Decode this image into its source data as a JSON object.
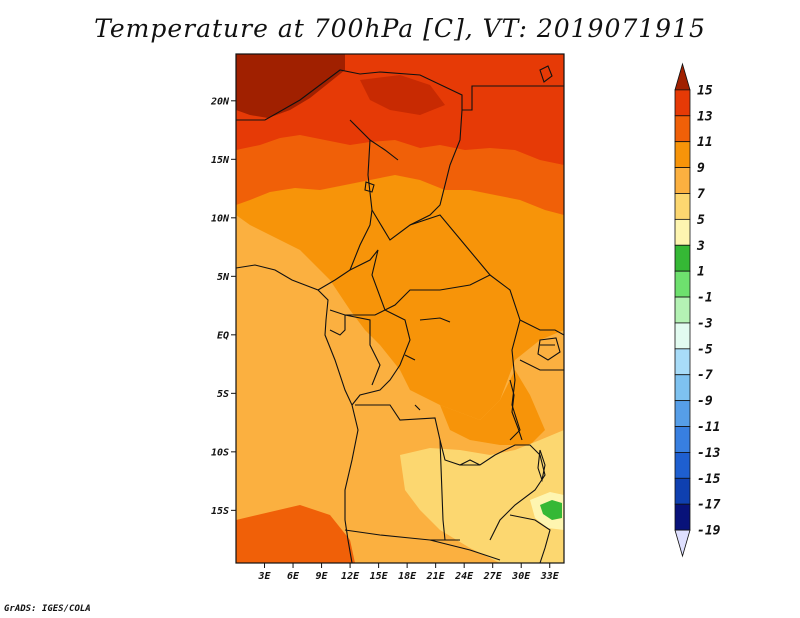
{
  "title": "Temperature at 700hPa [C], VT: 2019071915",
  "credit": "GrADS: IGES/COLA",
  "map": {
    "lon_range": [
      0,
      34.5
    ],
    "lat_range": [
      -19.5,
      24
    ],
    "lat_ticks": [
      {
        "value": 20,
        "label": "20N"
      },
      {
        "value": 15,
        "label": "15N"
      },
      {
        "value": 10,
        "label": "10N"
      },
      {
        "value": 5,
        "label": "5N"
      },
      {
        "value": 0,
        "label": "EQ"
      },
      {
        "value": -5,
        "label": "5S"
      },
      {
        "value": -10,
        "label": "10S"
      },
      {
        "value": -15,
        "label": "15S"
      }
    ],
    "lon_ticks": [
      {
        "value": 3,
        "label": "3E"
      },
      {
        "value": 6,
        "label": "6E"
      },
      {
        "value": 9,
        "label": "9E"
      },
      {
        "value": 12,
        "label": "12E"
      },
      {
        "value": 15,
        "label": "15E"
      },
      {
        "value": 18,
        "label": "18E"
      },
      {
        "value": 21,
        "label": "21E"
      },
      {
        "value": 24,
        "label": "24E"
      },
      {
        "value": 27,
        "label": "27E"
      },
      {
        "value": 30,
        "label": "30E"
      },
      {
        "value": 33,
        "label": "33E"
      }
    ]
  },
  "colorbar": {
    "bins": [
      {
        "color": "#a02000",
        "label": "15"
      },
      {
        "color": "#e63a06",
        "label": "13"
      },
      {
        "color": "#f06008",
        "label": "11"
      },
      {
        "color": "#f79409",
        "label": "9"
      },
      {
        "color": "#fbb040",
        "label": "7"
      },
      {
        "color": "#fcd770",
        "label": "5"
      },
      {
        "color": "#fef5b0",
        "label": "3"
      },
      {
        "color": "#35b835",
        "label": "1"
      },
      {
        "color": "#6ee06e",
        "label": "-1"
      },
      {
        "color": "#b4f2b4",
        "label": "-3"
      },
      {
        "color": "#e2fbf0",
        "label": "-5"
      },
      {
        "color": "#a8dcf8",
        "label": "-7"
      },
      {
        "color": "#7ec2f0",
        "label": "-9"
      },
      {
        "color": "#569ee8",
        "label": "-11"
      },
      {
        "color": "#387fe0",
        "label": "-13"
      },
      {
        "color": "#1e5fd0",
        "label": "-15"
      },
      {
        "color": "#0f40b0",
        "label": "-17"
      },
      {
        "color": "#08127a",
        "label": "-19"
      },
      {
        "color": "#dfe0ff",
        "label": ""
      }
    ]
  }
}
